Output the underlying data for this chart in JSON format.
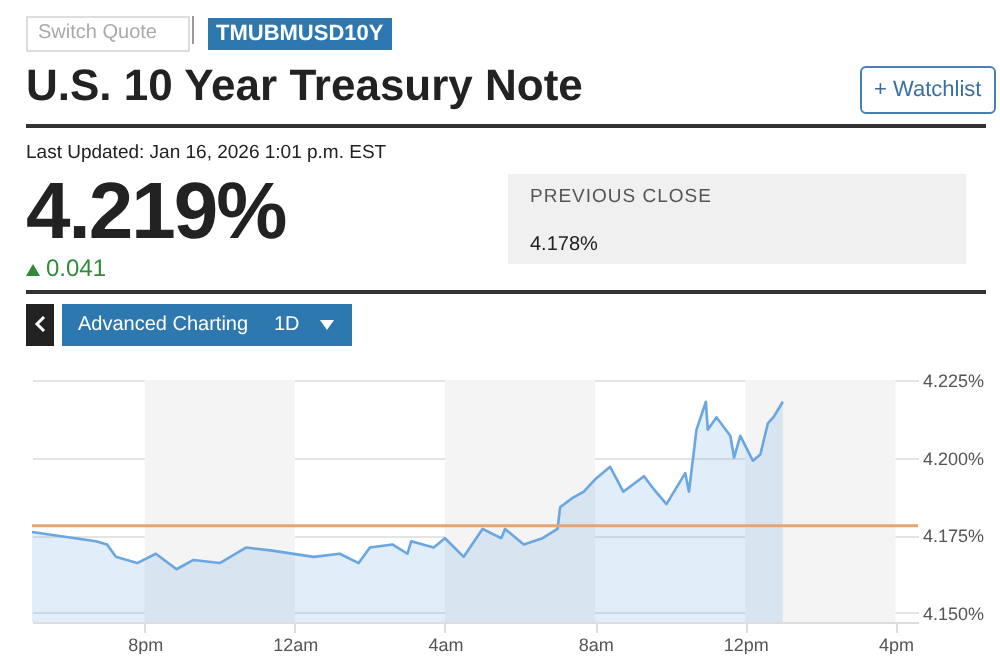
{
  "chart_data": {
    "type": "area",
    "title": "U.S. 10 Year Treasury Note",
    "annotations": [
      "Switch Quote",
      "TMUBMUSD10Y",
      "+ Watchlist",
      "Last Updated: Jan 16, 2026 1:01 p.m. EST",
      "4.219%",
      "0.041",
      "PREVIOUS CLOSE",
      "4.178%",
      "Advanced Charting",
      "1D"
    ],
    "x": [
      "2026-01-15T17:00",
      "2026-01-15T18:42",
      "2026-01-15T19:00",
      "2026-01-15T19:14",
      "2026-01-15T19:48",
      "2026-01-15T20:18",
      "2026-01-15T20:51",
      "2026-01-15T21:18",
      "2026-01-15T22:00",
      "2026-01-15T22:42",
      "2026-01-15T23:24",
      "2026-01-16T00:30",
      "2026-01-16T01:12",
      "2026-01-16T01:42",
      "2026-01-16T02:00",
      "2026-01-16T02:36",
      "2026-01-16T03:00",
      "2026-01-16T03:06",
      "2026-01-16T03:42",
      "2026-01-16T04:00",
      "2026-01-16T04:30",
      "2026-01-16T05:00",
      "2026-01-16T05:30",
      "2026-01-16T05:36",
      "2026-01-16T06:06",
      "2026-01-16T06:36",
      "2026-01-16T07:00",
      "2026-01-16T07:04",
      "2026-01-16T07:24",
      "2026-01-16T07:42",
      "2026-01-16T08:00",
      "2026-01-16T08:24",
      "2026-01-16T08:45",
      "2026-01-16T09:18",
      "2026-01-16T09:33",
      "2026-01-16T09:54",
      "2026-01-16T10:24",
      "2026-01-16T10:30",
      "2026-01-16T10:42",
      "2026-01-16T10:57",
      "2026-01-16T11:00",
      "2026-01-16T11:14",
      "2026-01-16T11:36",
      "2026-01-16T11:42",
      "2026-01-16T11:52",
      "2026-01-16T12:12",
      "2026-01-16T12:24",
      "2026-01-16T12:36",
      "2026-01-16T12:45",
      "2026-01-16T13:00"
    ],
    "series": [
      {
        "color": "#6aa6df",
        "values": [
          4.176,
          4.173,
          4.172,
          4.168,
          4.166,
          4.169,
          4.164,
          4.167,
          4.166,
          4.171,
          4.17,
          4.168,
          4.169,
          4.166,
          4.171,
          4.172,
          4.169,
          4.173,
          4.171,
          4.174,
          4.168,
          4.177,
          4.174,
          4.177,
          4.172,
          4.174,
          4.177,
          4.184,
          4.187,
          4.189,
          4.193,
          4.197,
          4.189,
          4.194,
          4.19,
          4.185,
          4.195,
          4.189,
          4.209,
          4.218,
          4.209,
          4.213,
          4.207,
          4.2,
          4.207,
          4.199,
          4.201,
          4.211,
          4.213,
          4.218
        ]
      }
    ],
    "xlim": [
      "2026-01-15T17:00",
      "2026-01-16T16:36"
    ],
    "xticks": [
      {
        "value": "2026-01-15T20:00",
        "label": "8pm"
      },
      {
        "value": "2026-01-16T00:00",
        "label": "12am"
      },
      {
        "value": "2026-01-16T04:00",
        "label": "4am"
      },
      {
        "value": "2026-01-16T08:00",
        "label": "8am"
      },
      {
        "value": "2026-01-16T12:00",
        "label": "12pm"
      },
      {
        "value": "2026-01-16T16:00",
        "label": "4pm"
      }
    ],
    "ylim": [
      4.147,
      4.225
    ],
    "yticks": [
      {
        "value": 4.15,
        "label": "4.150%"
      },
      {
        "value": 4.175,
        "label": "4.175%"
      },
      {
        "value": 4.2,
        "label": "4.200%"
      },
      {
        "value": 4.225,
        "label": "4.225%"
      }
    ],
    "ref_lines": [
      {
        "axis": "y",
        "value": 4.178,
        "color": "#e8a574"
      }
    ],
    "bands": [
      {
        "axis": "x",
        "from": "2026-01-15T20:00",
        "to": "2026-01-16T00:00",
        "color": "#f4f4f4"
      },
      {
        "axis": "x",
        "from": "2026-01-16T04:00",
        "to": "2026-01-16T08:00",
        "color": "#f4f4f4"
      },
      {
        "axis": "x",
        "from": "2026-01-16T12:00",
        "to": "2026-01-16T16:00",
        "color": "#f4f4f4"
      }
    ],
    "grid": "y"
  }
}
